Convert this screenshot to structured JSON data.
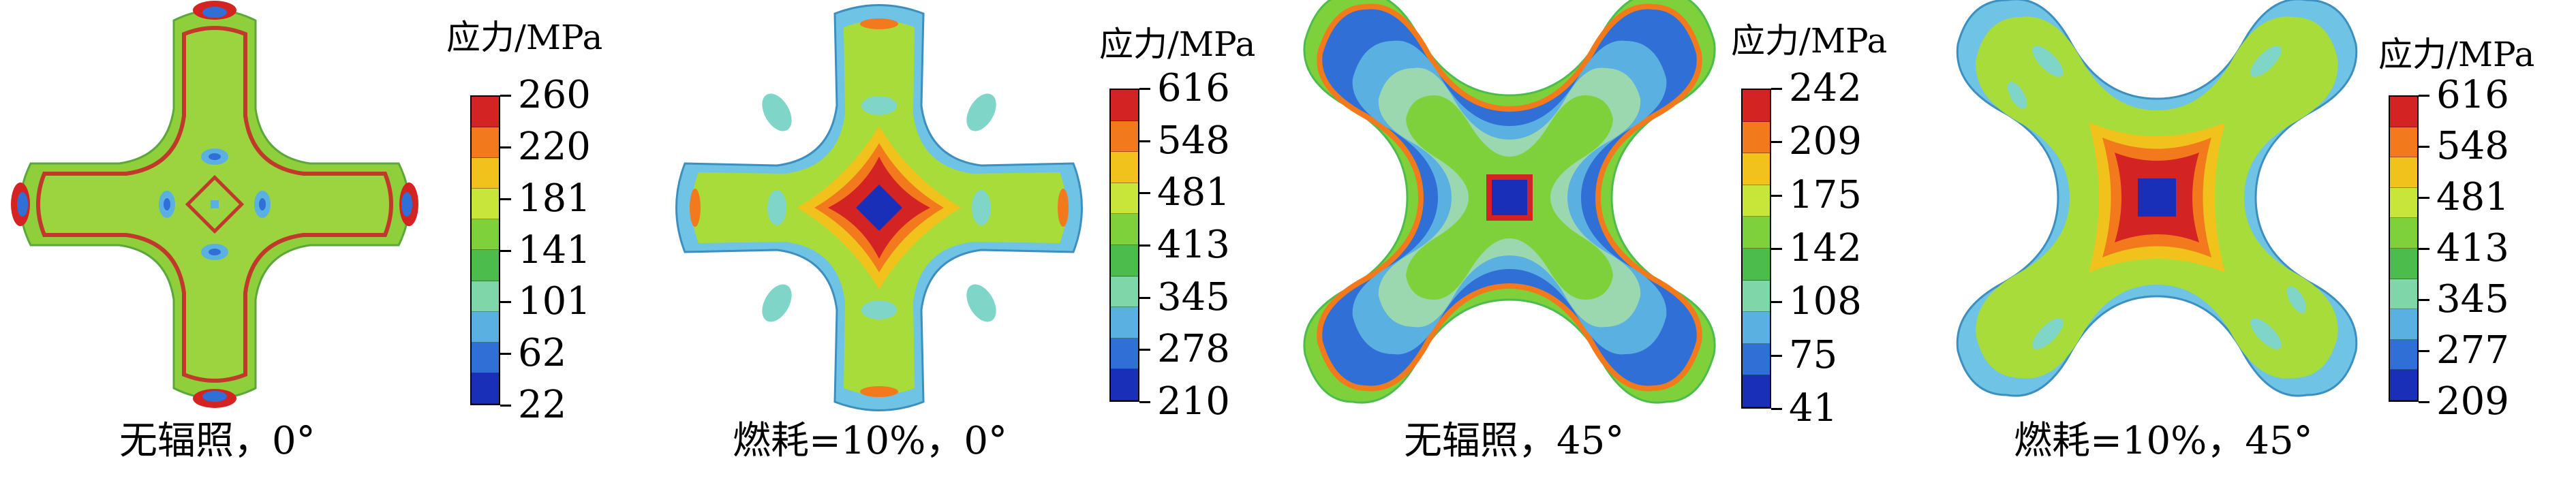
{
  "panels": [
    {
      "title": "应力/MPa",
      "ticks": [
        "260",
        "220",
        "181",
        "141",
        "101",
        "62",
        "22"
      ],
      "caption": "无辐照，0°"
    },
    {
      "title": "应力/MPa",
      "ticks": [
        "616",
        "548",
        "481",
        "413",
        "345",
        "278",
        "210"
      ],
      "caption": "燃耗=10%，0°"
    },
    {
      "title": "应力/MPa",
      "ticks": [
        "242",
        "209",
        "175",
        "142",
        "108",
        "75",
        "41"
      ],
      "caption": "无辐照，45°"
    },
    {
      "title": "应力/MPa",
      "ticks": [
        "616",
        "548",
        "481",
        "413",
        "345",
        "277",
        "209"
      ],
      "caption": "燃耗=10%，45°"
    }
  ],
  "colormap": [
    "#d42323",
    "#f27a1c",
    "#f2c21c",
    "#c8e63a",
    "#7fd13b",
    "#4cbd4c",
    "#7fd6a8",
    "#5ab0e0",
    "#2f6fd6",
    "#1a2fb8"
  ]
}
